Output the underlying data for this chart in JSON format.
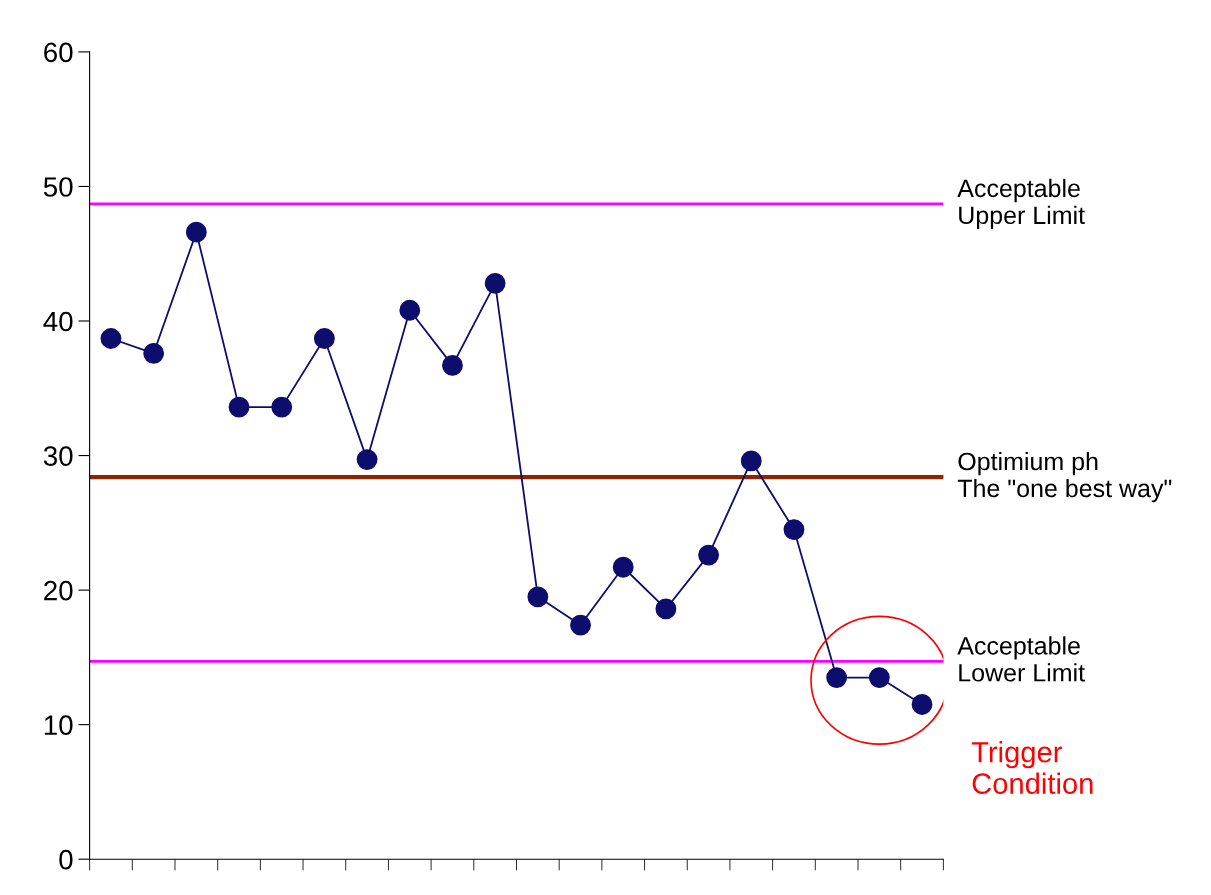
{
  "chart_data": {
    "type": "line",
    "categories": [
      null,
      null,
      null,
      null,
      null,
      null,
      null,
      null,
      null,
      null,
      null,
      null,
      null,
      null,
      null,
      null,
      null,
      null,
      null,
      null
    ],
    "series": [
      {
        "color": "#0d0d6e",
        "values": [
          38.7,
          37.6,
          46.6,
          33.6,
          33.6,
          38.7,
          29.7,
          40.8,
          36.7,
          42.8,
          19.5,
          17.4,
          21.7,
          18.6,
          22.6,
          29.6,
          24.5,
          13.5,
          13.5,
          11.5
        ]
      }
    ],
    "ylim": [
      0,
      60
    ],
    "yticks": [
      0,
      10,
      20,
      30,
      40,
      50,
      60
    ],
    "marker": "circle",
    "line_style": "solid",
    "grid": false,
    "legend": false,
    "ref_lines": [
      {
        "axis": "y",
        "value": 48.7,
        "label": "Acceptable\nUpper Limit",
        "color": "#ff00ff"
      },
      {
        "axis": "y",
        "value": 28.4,
        "label": "Optimium ph\nThe \"one best way\"",
        "color": "#8b2500"
      },
      {
        "axis": "y",
        "value": 14.7,
        "label": "Acceptable\nLower Limit",
        "color": "#ff00ff"
      }
    ],
    "annotations": [
      "Trigger\nCondition"
    ]
  }
}
